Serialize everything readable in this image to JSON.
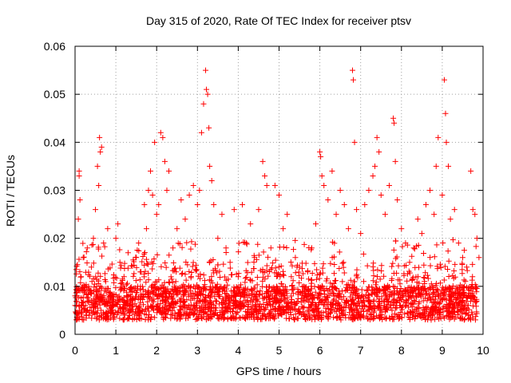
{
  "chart_data": {
    "type": "scatter",
    "title": "Day 315 of 2020, Rate Of TEC Index for receiver ptsv",
    "xlabel": "GPS time / hours",
    "ylabel": "ROTI / TECUs",
    "xlim": [
      0,
      10
    ],
    "ylim": [
      0,
      0.06
    ],
    "x_ticks": [
      "0",
      "1",
      "2",
      "3",
      "4",
      "5",
      "6",
      "7",
      "8",
      "9",
      "10"
    ],
    "y_ticks": [
      "0",
      "0.01",
      "0.02",
      "0.03",
      "0.04",
      "0.05",
      "0.06"
    ],
    "x_tick_values": [
      0,
      1,
      2,
      3,
      4,
      5,
      6,
      7,
      8,
      9,
      10
    ],
    "y_tick_values": [
      0,
      0.01,
      0.02,
      0.03,
      0.04,
      0.05,
      0.06
    ],
    "grid": true,
    "marker": "+",
    "color": "#ff0000",
    "series": [
      {
        "name": "ROTI",
        "points": [
          [
            0.0,
            0.006
          ],
          [
            0.05,
            0.008
          ],
          [
            0.08,
            0.024
          ],
          [
            0.1,
            0.033
          ],
          [
            0.1,
            0.034
          ],
          [
            0.12,
            0.028
          ],
          [
            0.15,
            0.012
          ],
          [
            0.2,
            0.016
          ],
          [
            0.25,
            0.009
          ],
          [
            0.3,
            0.018
          ],
          [
            0.35,
            0.007
          ],
          [
            0.4,
            0.014
          ],
          [
            0.45,
            0.02
          ],
          [
            0.5,
            0.026
          ],
          [
            0.55,
            0.035
          ],
          [
            0.58,
            0.031
          ],
          [
            0.6,
            0.041
          ],
          [
            0.62,
            0.038
          ],
          [
            0.65,
            0.039
          ],
          [
            0.7,
            0.019
          ],
          [
            0.75,
            0.011
          ],
          [
            0.8,
            0.022
          ],
          [
            0.9,
            0.008
          ],
          [
            1.0,
            0.02
          ],
          [
            1.05,
            0.023
          ],
          [
            1.1,
            0.015
          ],
          [
            1.2,
            0.012
          ],
          [
            1.3,
            0.017
          ],
          [
            1.4,
            0.009
          ],
          [
            1.5,
            0.016
          ],
          [
            1.6,
            0.013
          ],
          [
            1.7,
            0.027
          ],
          [
            1.75,
            0.022
          ],
          [
            1.8,
            0.03
          ],
          [
            1.85,
            0.034
          ],
          [
            1.9,
            0.029
          ],
          [
            1.95,
            0.04
          ],
          [
            2.0,
            0.025
          ],
          [
            2.05,
            0.027
          ],
          [
            2.1,
            0.042
          ],
          [
            2.15,
            0.041
          ],
          [
            2.2,
            0.036
          ],
          [
            2.25,
            0.03
          ],
          [
            2.3,
            0.034
          ],
          [
            2.4,
            0.018
          ],
          [
            2.5,
            0.022
          ],
          [
            2.6,
            0.028
          ],
          [
            2.7,
            0.024
          ],
          [
            2.8,
            0.029
          ],
          [
            2.9,
            0.031
          ],
          [
            3.0,
            0.027
          ],
          [
            3.05,
            0.03
          ],
          [
            3.1,
            0.042
          ],
          [
            3.15,
            0.048
          ],
          [
            3.2,
            0.055
          ],
          [
            3.22,
            0.051
          ],
          [
            3.25,
            0.05
          ],
          [
            3.28,
            0.043
          ],
          [
            3.3,
            0.035
          ],
          [
            3.35,
            0.032
          ],
          [
            3.4,
            0.027
          ],
          [
            3.5,
            0.02
          ],
          [
            3.6,
            0.025
          ],
          [
            3.7,
            0.018
          ],
          [
            3.8,
            0.015
          ],
          [
            3.9,
            0.026
          ],
          [
            4.0,
            0.012
          ],
          [
            4.1,
            0.027
          ],
          [
            4.2,
            0.019
          ],
          [
            4.3,
            0.023
          ],
          [
            4.4,
            0.016
          ],
          [
            4.5,
            0.026
          ],
          [
            4.6,
            0.036
          ],
          [
            4.65,
            0.033
          ],
          [
            4.7,
            0.031
          ],
          [
            4.8,
            0.018
          ],
          [
            4.9,
            0.031
          ],
          [
            5.0,
            0.029
          ],
          [
            5.1,
            0.022
          ],
          [
            5.2,
            0.025
          ],
          [
            5.3,
            0.012
          ],
          [
            5.4,
            0.016
          ],
          [
            5.5,
            0.014
          ],
          [
            5.6,
            0.01
          ],
          [
            5.7,
            0.013
          ],
          [
            5.8,
            0.018
          ],
          [
            5.9,
            0.023
          ],
          [
            6.0,
            0.038
          ],
          [
            6.02,
            0.037
          ],
          [
            6.05,
            0.033
          ],
          [
            6.1,
            0.031
          ],
          [
            6.2,
            0.028
          ],
          [
            6.3,
            0.034
          ],
          [
            6.4,
            0.025
          ],
          [
            6.5,
            0.03
          ],
          [
            6.6,
            0.027
          ],
          [
            6.7,
            0.022
          ],
          [
            6.8,
            0.055
          ],
          [
            6.82,
            0.053
          ],
          [
            6.85,
            0.04
          ],
          [
            6.9,
            0.026
          ],
          [
            7.0,
            0.021
          ],
          [
            7.1,
            0.027
          ],
          [
            7.2,
            0.03
          ],
          [
            7.3,
            0.033
          ],
          [
            7.35,
            0.035
          ],
          [
            7.4,
            0.041
          ],
          [
            7.45,
            0.038
          ],
          [
            7.5,
            0.029
          ],
          [
            7.6,
            0.025
          ],
          [
            7.7,
            0.031
          ],
          [
            7.8,
            0.045
          ],
          [
            7.82,
            0.044
          ],
          [
            7.85,
            0.036
          ],
          [
            7.9,
            0.028
          ],
          [
            8.0,
            0.022
          ],
          [
            8.1,
            0.019
          ],
          [
            8.2,
            0.015
          ],
          [
            8.3,
            0.018
          ],
          [
            8.4,
            0.024
          ],
          [
            8.5,
            0.021
          ],
          [
            8.6,
            0.027
          ],
          [
            8.7,
            0.03
          ],
          [
            8.8,
            0.025
          ],
          [
            8.85,
            0.035
          ],
          [
            8.9,
            0.041
          ],
          [
            9.0,
            0.029
          ],
          [
            9.05,
            0.053
          ],
          [
            9.08,
            0.046
          ],
          [
            9.1,
            0.04
          ],
          [
            9.15,
            0.035
          ],
          [
            9.2,
            0.024
          ],
          [
            9.3,
            0.026
          ],
          [
            9.4,
            0.019
          ],
          [
            9.5,
            0.016
          ],
          [
            9.6,
            0.014
          ],
          [
            9.7,
            0.034
          ],
          [
            9.75,
            0.026
          ],
          [
            9.8,
            0.025
          ],
          [
            9.85,
            0.02
          ],
          [
            9.9,
            0.016
          ]
        ]
      }
    ]
  }
}
